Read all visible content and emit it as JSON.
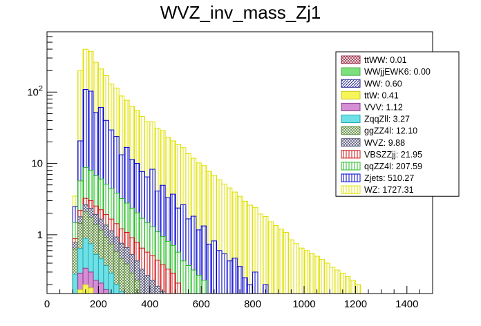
{
  "chart_data": {
    "type": "bar",
    "subtype": "stacked-histogram",
    "title": "WVZ_inv_mass_Zj1",
    "xlabel": "",
    "ylabel": "",
    "xlim": [
      0,
      1500
    ],
    "ylim": [
      0.15,
      700
    ],
    "yscale": "log",
    "bin_width": 20,
    "x_ticks": [
      0,
      200,
      400,
      600,
      800,
      1000,
      1200,
      1400
    ],
    "x_tick_labels": [
      "0",
      "200",
      "400",
      "600",
      "800",
      "1000",
      "1200",
      "1400"
    ],
    "y_ticks": [
      1,
      10,
      100
    ],
    "y_tick_labels": [
      "1",
      "10",
      "10^2"
    ],
    "legend_position": "top-right",
    "series": [
      {
        "name": "ttWW",
        "label": "ttWW: 0.01",
        "color": "#e88fa6",
        "pattern": "cross",
        "stroke": "#9b2a45",
        "bins": {}
      },
      {
        "name": "WWjjEWK6",
        "label": "WWjjEWK6: 0.00",
        "color": "#7de07d",
        "pattern": "solid",
        "stroke": "#4caf50",
        "bins": {}
      },
      {
        "name": "WW",
        "label": "WW: 0.60",
        "color": "#3b3bb0",
        "pattern": "hatch",
        "stroke": "#1c1c8c",
        "bins": {
          "120": 0.12,
          "140": 0.14,
          "160": 0.12,
          "180": 0.08,
          "200": 0.08,
          "220": 0.06,
          "240": 0.05
        }
      },
      {
        "name": "ttW",
        "label": "ttW: 0.41",
        "color": "#f5f55a",
        "pattern": "solid",
        "stroke": "#c8c820",
        "bins": {
          "120": 0.05,
          "140": 0.06,
          "160": 0.06,
          "180": 0.05,
          "200": 0.04,
          "220": 0.04,
          "240": 0.03,
          "260": 0.03,
          "280": 0.02,
          "300": 0.02
        }
      },
      {
        "name": "VVV",
        "label": "VVV: 1.12",
        "color": "#d58fd5",
        "pattern": "solid",
        "stroke": "#8b3a8b",
        "bins": {
          "100": 0.08,
          "120": 0.12,
          "140": 0.14,
          "160": 0.12,
          "180": 0.1,
          "200": 0.09,
          "220": 0.07,
          "240": 0.06,
          "260": 0.05,
          "280": 0.04,
          "300": 0.04,
          "320": 0.03
        }
      },
      {
        "name": "ZqqZll",
        "label": "ZqqZll: 3.27",
        "color": "#6fe0e6",
        "pattern": "solid",
        "stroke": "#1fa9b5",
        "bins": {
          "100": 0.2,
          "120": 0.35,
          "140": 0.55,
          "160": 0.45,
          "180": 0.3,
          "200": 0.25,
          "220": 0.2,
          "240": 0.15,
          "260": 0.12,
          "280": 0.1,
          "300": 0.08,
          "320": 0.06,
          "340": 0.05
        }
      },
      {
        "name": "ggZZ4l",
        "label": "ggZZ4l: 12.10",
        "color": "#bfe3a6",
        "pattern": "cross",
        "stroke": "#5c8a3a",
        "bins": {
          "100": 0.35,
          "120": 0.8,
          "140": 1.2,
          "160": 1.0,
          "180": 0.85,
          "200": 0.7,
          "220": 0.55,
          "240": 0.45,
          "260": 0.38,
          "280": 0.3,
          "300": 0.25,
          "320": 0.2,
          "340": 0.18,
          "360": 0.15,
          "380": 0.12,
          "400": 0.1,
          "420": 0.08,
          "440": 0.06,
          "460": 0.05,
          "480": 0.04
        }
      },
      {
        "name": "WVZ",
        "label": "WVZ: 9.88",
        "color": "#b8b8d8",
        "pattern": "cross",
        "stroke": "#555577",
        "bins": {
          "100": 0.15,
          "120": 0.35,
          "140": 0.55,
          "160": 0.6,
          "180": 0.55,
          "200": 0.5,
          "220": 0.45,
          "240": 0.4,
          "260": 0.35,
          "280": 0.3,
          "300": 0.27,
          "320": 0.24,
          "340": 0.2,
          "360": 0.18,
          "380": 0.15,
          "400": 0.13,
          "420": 0.11,
          "440": 0.1,
          "460": 0.08,
          "480": 0.07,
          "500": 0.06
        }
      },
      {
        "name": "VBSZZjj",
        "label": "VBSZZjj: 21.95",
        "color": "#f2a0a0",
        "pattern": "vertical",
        "stroke": "#cc1111",
        "bins": {
          "100": 0.1,
          "120": 0.4,
          "140": 0.6,
          "160": 0.65,
          "180": 0.6,
          "200": 0.58,
          "220": 0.55,
          "240": 0.52,
          "260": 0.5,
          "280": 0.45,
          "300": 0.42,
          "320": 0.38,
          "340": 0.35,
          "360": 0.32,
          "380": 0.3,
          "400": 0.28,
          "420": 0.25,
          "440": 0.22,
          "460": 0.2,
          "480": 0.18,
          "500": 0.15,
          "520": 0.13,
          "540": 0.11,
          "560": 0.1,
          "580": 0.08,
          "600": 0.07
        }
      },
      {
        "name": "qqZZ4l",
        "label": "qqZZ4l: 207.59",
        "color": "#a0f0a0",
        "pattern": "vertical",
        "stroke": "#22bb22",
        "bins": {
          "100": 0.6,
          "120": 3.5,
          "140": 5.5,
          "160": 5.0,
          "180": 4.2,
          "200": 3.8,
          "220": 3.2,
          "240": 2.8,
          "260": 2.4,
          "280": 2.0,
          "300": 1.7,
          "320": 1.45,
          "340": 1.25,
          "360": 1.05,
          "380": 0.9,
          "400": 0.78,
          "420": 0.66,
          "440": 0.56,
          "460": 0.48,
          "480": 0.42,
          "500": 0.36,
          "520": 0.3,
          "540": 0.26,
          "560": 0.22,
          "580": 0.19,
          "600": 0.16,
          "620": 0.14,
          "640": 0.12,
          "660": 0.1,
          "680": 0.09,
          "700": 0.08,
          "720": 0.07,
          "740": 0.06
        }
      },
      {
        "name": "Zjets",
        "label": "Zjets: 510.27",
        "color": "#6a6ad8",
        "pattern": "vertical",
        "stroke": "#0000cc",
        "bins": {
          "100": 1.0,
          "120": 15,
          "140": 100,
          "160": 95,
          "180": 45,
          "200": 55,
          "220": 35,
          "240": 25,
          "260": 20,
          "280": 10,
          "300": 14,
          "320": 9,
          "340": 8,
          "360": 6,
          "380": 5,
          "400": 7,
          "420": 3,
          "440": 4,
          "460": 2.5,
          "480": 3,
          "500": 1.8,
          "520": 2.2,
          "540": 1.3,
          "560": 1.5,
          "580": 0.9,
          "600": 1.1,
          "620": 0.6,
          "640": 0.7,
          "660": 0.5,
          "680": 0.45,
          "700": 0.35,
          "720": 0.4,
          "740": 0.3,
          "760": 0.25,
          "780": 0.2,
          "800": 0.3,
          "820": 0.15,
          "840": 0.2,
          "860": 0.12,
          "880": 0.1,
          "900": 0.1,
          "920": 0.08
        }
      },
      {
        "name": "WZ",
        "label": "WZ: 1727.31",
        "color": "#f5f57a",
        "pattern": "vertical",
        "stroke": "#e0e000",
        "bins": {
          "100": 1.0,
          "120": 180,
          "140": 290,
          "160": 270,
          "180": 210,
          "200": 150,
          "220": 130,
          "240": 100,
          "260": 90,
          "280": 75,
          "300": 60,
          "320": 52,
          "340": 45,
          "360": 38,
          "380": 32,
          "400": 30,
          "420": 27,
          "440": 24,
          "460": 20,
          "480": 17,
          "500": 16,
          "520": 14,
          "540": 12,
          "560": 10,
          "580": 9,
          "600": 8,
          "620": 7,
          "640": 6,
          "660": 5.3,
          "680": 4.6,
          "700": 4.1,
          "720": 3.5,
          "740": 3.1,
          "760": 2.7,
          "780": 2.4,
          "800": 2.1,
          "820": 1.8,
          "840": 1.6,
          "860": 1.4,
          "880": 1.25,
          "900": 1.1,
          "920": 1.0,
          "940": 0.85,
          "960": 0.75,
          "980": 0.65,
          "1000": 0.6,
          "1020": 0.55,
          "1040": 0.5,
          "1060": 0.45,
          "1080": 0.4,
          "1100": 0.35,
          "1120": 0.32,
          "1140": 0.29,
          "1160": 0.26,
          "1180": 0.23,
          "1200": 0.2
        }
      }
    ]
  }
}
